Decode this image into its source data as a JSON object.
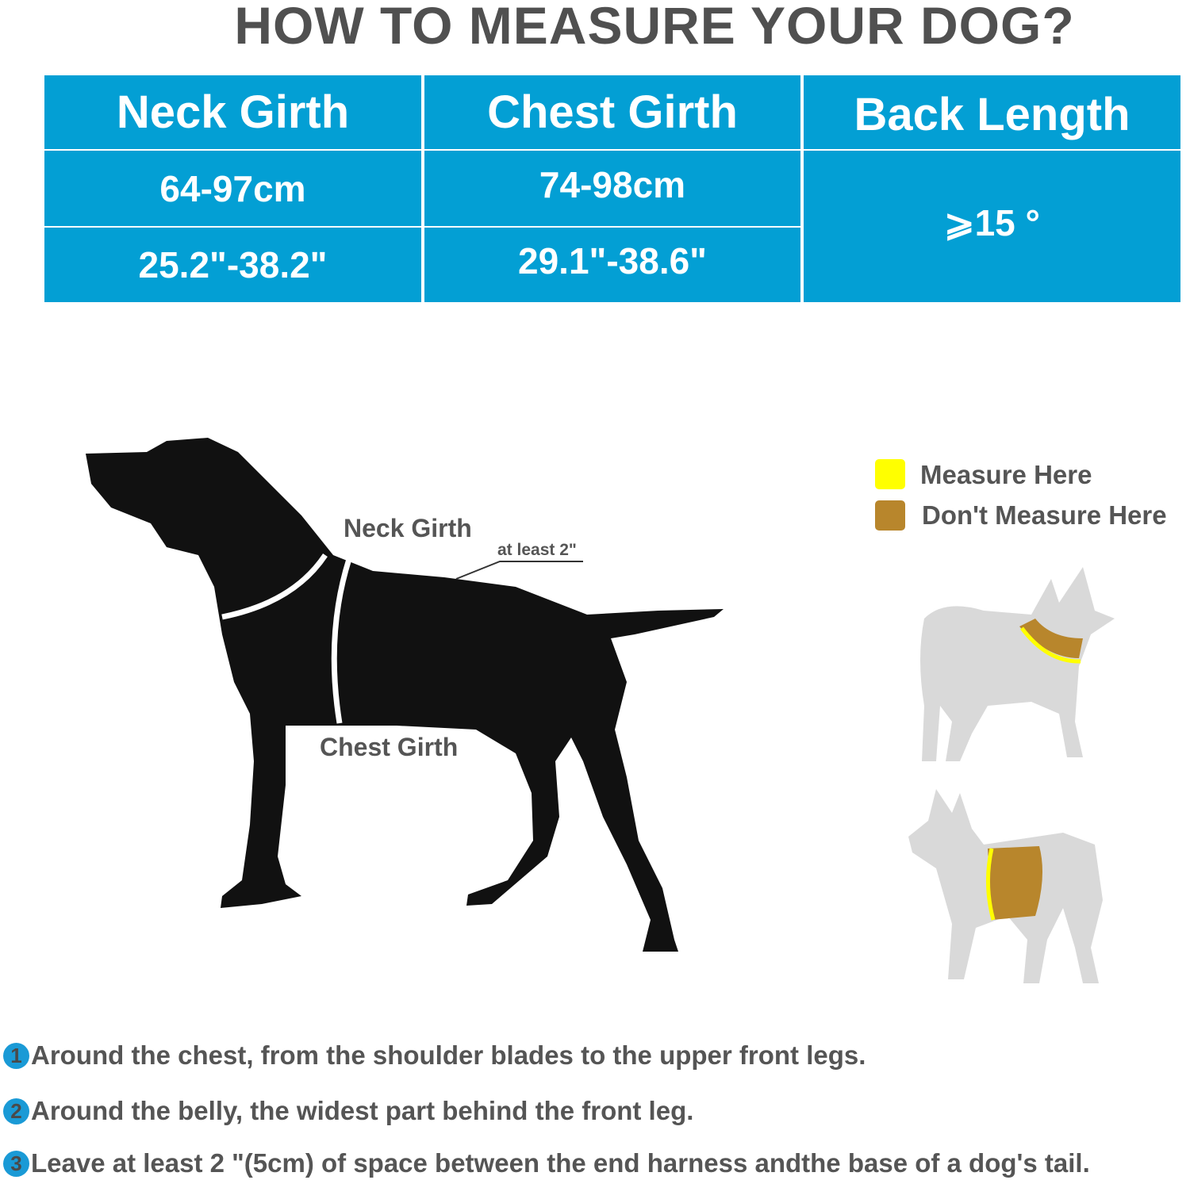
{
  "title": "HOW TO MEASURE YOUR DOG?",
  "colors": {
    "table_blue": "#039fd4",
    "measure_here": "#ffff00",
    "dont_measure_here": "#b8862c",
    "text": "#555555"
  },
  "table": {
    "headers": [
      "Neck Girth",
      "Chest Girth",
      "Back Length"
    ],
    "rows": [
      {
        "neck": "64-97cm",
        "chest": "74-98cm"
      },
      {
        "neck": "25.2\"-38.2\"",
        "chest": "29.1\"-38.6\""
      }
    ],
    "back_length": "⩾15 °"
  },
  "diagram": {
    "neck_label": "Neck Girth",
    "chest_label": "Chest Girth",
    "gap_label": "at least 2\""
  },
  "legend": {
    "items": [
      {
        "label": "Measure Here",
        "color": "#ffff00"
      },
      {
        "label": "Don't Measure Here",
        "color": "#b8862c"
      }
    ]
  },
  "instructions": [
    {
      "num": "1",
      "text": "Around the chest, from the shoulder blades to the upper front legs."
    },
    {
      "num": "2",
      "text": "Around the belly, the widest part behind the front leg."
    },
    {
      "num": "3",
      "text": "Leave at least 2 \"(5cm) of space between the end harness andthe base of a dog's tail."
    }
  ]
}
